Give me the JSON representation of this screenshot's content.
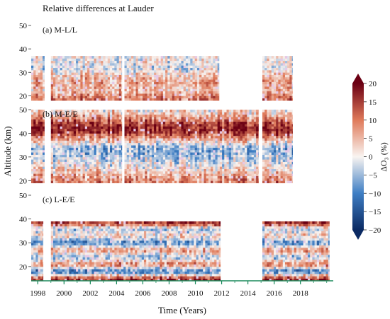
{
  "title": "Relative differences at Lauder",
  "colors": {
    "cold_end": "#0b2a63",
    "cold_mid": "#3e7ec4",
    "neutral": "#f9f4f1",
    "warm_mid": "#df7a5a",
    "warm_end": "#6b0013",
    "bottom_axis": "#1a8a5c"
  },
  "chart_data": {
    "type": "heatmap",
    "xlabel": "Time (Years)",
    "ylabel": "Altitude (km)",
    "x_ticks": [
      "1998",
      "2000",
      "2002",
      "2004",
      "2006",
      "2008",
      "2010",
      "2012",
      "2014",
      "2016",
      "2018"
    ],
    "x_range": [
      1997.5,
      2020.5
    ],
    "colorbar": {
      "label": "ΔO₃ (%)",
      "range": [
        -20,
        20
      ],
      "ticks": [
        "20",
        "15",
        "10",
        "5",
        "0",
        "−5",
        "−10",
        "−15",
        "−20"
      ],
      "extend": "both"
    },
    "panels": [
      {
        "label": "(a) M-L/L",
        "y_ticks": [
          "50",
          "40",
          "30",
          "20"
        ],
        "ylim": [
          18,
          50
        ],
        "data_altitude": [
          18,
          37
        ],
        "data_periods": [
          [
            1997.5,
            1998.5
          ],
          [
            1999.0,
            2004.4
          ],
          [
            2004.6,
            2011.8
          ],
          [
            2015.1,
            2017.4
          ]
        ],
        "profile": [
          {
            "alt": 19,
            "dO3": 10
          },
          {
            "alt": 22,
            "dO3": 4
          },
          {
            "alt": 26,
            "dO3": 6
          },
          {
            "alt": 29,
            "dO3": 3
          },
          {
            "alt": 32,
            "dO3": -2
          },
          {
            "alt": 35,
            "dO3": 0
          }
        ]
      },
      {
        "label": "(b) M-E/E",
        "y_ticks": [
          "50",
          "40",
          "30",
          "20"
        ],
        "ylim": [
          18,
          50
        ],
        "data_altitude": [
          19,
          50
        ],
        "data_periods": [
          [
            1997.5,
            1998.5
          ],
          [
            1999.0,
            2004.4
          ],
          [
            2004.6,
            2014.8
          ],
          [
            2015.1,
            2017.4
          ]
        ],
        "profile": [
          {
            "alt": 20,
            "dO3": 9
          },
          {
            "alt": 24,
            "dO3": 3
          },
          {
            "alt": 28,
            "dO3": -2
          },
          {
            "alt": 31,
            "dO3": -5
          },
          {
            "alt": 34,
            "dO3": -6
          },
          {
            "alt": 38,
            "dO3": 7
          },
          {
            "alt": 41,
            "dO3": 17
          },
          {
            "alt": 44,
            "dO3": 15
          },
          {
            "alt": 47,
            "dO3": 7
          },
          {
            "alt": 49,
            "dO3": 2
          }
        ]
      },
      {
        "label": "(c) L-E/E",
        "y_ticks": [
          "50",
          "40",
          "30",
          "20"
        ],
        "ylim": [
          14,
          50
        ],
        "data_altitude": [
          14,
          39
        ],
        "data_periods": [
          [
            1997.5,
            1998.4
          ],
          [
            1999.0,
            2011.9
          ],
          [
            2015.1,
            2020.2
          ]
        ],
        "profile": [
          {
            "alt": 15,
            "dO3": 16
          },
          {
            "alt": 18,
            "dO3": -12
          },
          {
            "alt": 21,
            "dO3": 10
          },
          {
            "alt": 24,
            "dO3": -5
          },
          {
            "alt": 27,
            "dO3": 8
          },
          {
            "alt": 30,
            "dO3": -9
          },
          {
            "alt": 33,
            "dO3": 3
          },
          {
            "alt": 36,
            "dO3": -4
          },
          {
            "alt": 38,
            "dO3": 15
          }
        ]
      }
    ]
  }
}
